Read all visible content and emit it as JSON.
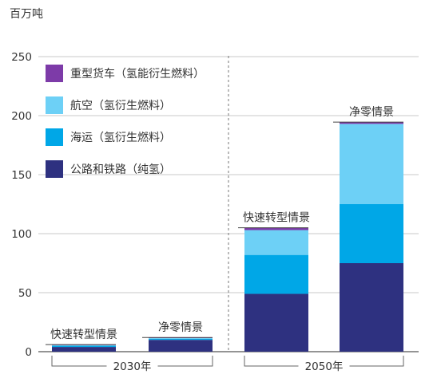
{
  "chart_data": {
    "type": "bar",
    "stacked": true,
    "unit": "百万吨",
    "ylim": [
      0,
      250
    ],
    "yticks": [
      0,
      50,
      100,
      150,
      200,
      250
    ],
    "grid": true,
    "legend_position": "top-left",
    "groups": [
      {
        "label": "2030年",
        "bars": [
          0,
          1
        ]
      },
      {
        "label": "2050年",
        "bars": [
          2,
          3
        ]
      }
    ],
    "categories": [
      "快速转型情景",
      "净零情景",
      "快速转型情景",
      "净零情景"
    ],
    "series": [
      {
        "name": "公路和铁路（纯氢）",
        "color": "#2e3180",
        "values": [
          4,
          10,
          49,
          75
        ]
      },
      {
        "name": "海运（氢衍生燃料）",
        "color": "#00a7e7",
        "values": [
          1,
          0.8,
          33,
          50
        ]
      },
      {
        "name": "航空（氢衍生燃料）",
        "color": "#6dd0f6",
        "values": [
          0.5,
          0.7,
          21,
          68
        ]
      },
      {
        "name": "重型货车（氢能衍生燃料）",
        "color": "#7d3ba8",
        "values": [
          0.5,
          0.5,
          2,
          1.5
        ]
      }
    ]
  }
}
